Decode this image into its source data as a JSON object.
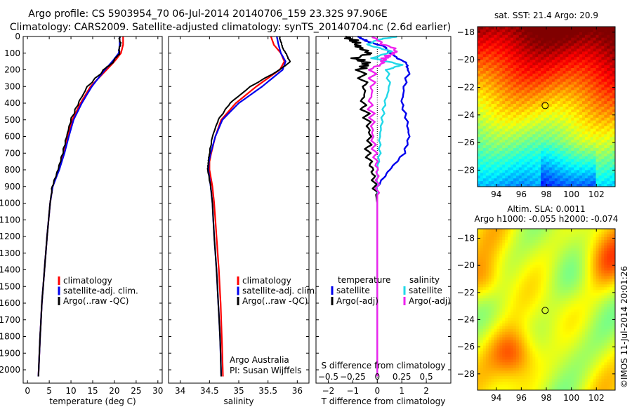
{
  "header": {
    "title_line1": "Argo profile: CS 5903954_70 06-Jul-2014 20140706_159 23.32S 97.906E",
    "title_line2": "Climatology: CARS2009. Satellite-adjusted climatology: synTS_20140704.nc (2.6d earlier)"
  },
  "colors": {
    "climatology": "#ff0000",
    "satellite": "#0000ee",
    "argo": "#000000",
    "salinity_satellite": "#22d8e8",
    "salinity_argo": "#ee22ee"
  },
  "chart_data": [
    {
      "id": "temperature",
      "type": "line",
      "xlabel": "temperature (deg C)",
      "ylabel": "",
      "xlim": [
        -1,
        31
      ],
      "ylim": [
        2080,
        0
      ],
      "xticks": [
        0,
        5,
        10,
        15,
        20,
        25,
        30
      ],
      "yticks": [
        0,
        100,
        200,
        300,
        400,
        500,
        600,
        700,
        800,
        900,
        1000,
        1100,
        1200,
        1300,
        1400,
        1500,
        1600,
        1700,
        1800,
        1900,
        2000
      ],
      "legend": [
        {
          "label": "climatology",
          "series": "climatology"
        },
        {
          "label": "satellite-adj. clim.",
          "series": "satellite"
        },
        {
          "label": "Argo(..raw -QC)",
          "series": "argo"
        }
      ],
      "series": [
        {
          "name": "climatology",
          "depth": [
            0,
            50,
            100,
            150,
            200,
            300,
            400,
            500,
            600,
            700,
            800,
            900,
            1000,
            1200,
            1400,
            1600,
            1800,
            2040
          ],
          "values": [
            22.0,
            22.0,
            21.5,
            20.0,
            18.2,
            14.5,
            12.2,
            10.3,
            9.2,
            8.3,
            7.2,
            5.8,
            5.2,
            4.5,
            3.9,
            3.3,
            2.9,
            2.5
          ]
        },
        {
          "name": "satellite",
          "depth": [
            0,
            50,
            100,
            150,
            200,
            300,
            400,
            500,
            600,
            700,
            800,
            900,
            1000,
            1200,
            1400,
            1600,
            1800,
            2040
          ],
          "values": [
            21.2,
            21.2,
            21.0,
            19.5,
            17.8,
            14.8,
            12.5,
            10.6,
            9.5,
            8.5,
            7.3,
            5.8,
            5.2,
            4.5,
            3.9,
            3.3,
            2.9,
            2.5
          ]
        },
        {
          "name": "argo",
          "depth": [
            0,
            50,
            100,
            150,
            200,
            300,
            400,
            500,
            600,
            700,
            800,
            900,
            1000,
            1200,
            1400,
            1600,
            1800,
            2040
          ],
          "values": [
            21.3,
            21.3,
            21.1,
            19.8,
            17.6,
            13.8,
            11.7,
            10.0,
            9.0,
            8.1,
            7.0,
            5.7,
            5.2,
            4.5,
            3.9,
            3.3,
            2.9,
            2.5
          ]
        }
      ]
    },
    {
      "id": "salinity",
      "type": "line",
      "xlabel": "salinity",
      "ylabel": "",
      "xlim": [
        33.8,
        36.2
      ],
      "ylim": [
        2080,
        0
      ],
      "xticks": [
        34,
        34.5,
        35,
        35.5,
        36
      ],
      "yticks": [
        0,
        100,
        200,
        300,
        400,
        500,
        600,
        700,
        800,
        900,
        1000,
        1100,
        1200,
        1300,
        1400,
        1500,
        1600,
        1700,
        1800,
        1900,
        2000
      ],
      "legend": [
        {
          "label": "climatology",
          "series": "climatology"
        },
        {
          "label": "satellite-adj. clim.",
          "series": "satellite"
        },
        {
          "label": "Argo(..raw -QC)",
          "series": "argo"
        }
      ],
      "annotations": [
        "Argo Australia",
        "PI: Susan Wijffels"
      ],
      "series": [
        {
          "name": "climatology",
          "depth": [
            0,
            50,
            100,
            150,
            200,
            300,
            400,
            500,
            600,
            700,
            750,
            800,
            900,
            1000,
            1200,
            1400,
            1600,
            1800,
            2040
          ],
          "values": [
            35.55,
            35.6,
            35.72,
            35.78,
            35.7,
            35.3,
            34.95,
            34.7,
            34.6,
            34.53,
            34.5,
            34.5,
            34.55,
            34.58,
            34.62,
            34.66,
            34.69,
            34.71,
            34.73
          ]
        },
        {
          "name": "satellite",
          "depth": [
            0,
            50,
            100,
            150,
            200,
            300,
            400,
            500,
            600,
            700,
            750,
            800,
            900,
            1000,
            1200,
            1400,
            1600,
            1800,
            2040
          ],
          "values": [
            35.65,
            35.68,
            35.72,
            35.8,
            35.75,
            35.4,
            35.0,
            34.72,
            34.6,
            34.52,
            34.49,
            34.48,
            34.52,
            34.55,
            34.58,
            34.62,
            34.65,
            34.68,
            34.7
          ]
        },
        {
          "name": "argo",
          "depth": [
            0,
            50,
            100,
            150,
            200,
            300,
            400,
            500,
            600,
            700,
            750,
            800,
            900,
            1000,
            1200,
            1400,
            1600,
            1800,
            2040
          ],
          "values": [
            35.7,
            35.73,
            35.8,
            35.88,
            35.7,
            35.2,
            34.85,
            34.65,
            34.55,
            34.5,
            34.48,
            34.47,
            34.52,
            34.55,
            34.58,
            34.62,
            34.65,
            34.68,
            34.7
          ]
        }
      ]
    },
    {
      "id": "difference",
      "type": "line",
      "xlabel": "T difference from climatology",
      "top_axis_label": "S difference from climatology",
      "xlim": [
        -2.5,
        3
      ],
      "ylim": [
        2080,
        0
      ],
      "xticks": [
        -2,
        -1,
        0,
        1,
        2
      ],
      "xticklabels": [
        "−2",
        "−1",
        "0",
        "1",
        "2"
      ],
      "top_ticks": [
        -0.5,
        -0.25,
        0,
        0.25,
        0.5
      ],
      "top_ticklabels": [
        "−0.5",
        "−0.25",
        "0",
        "0.25",
        "0.5"
      ],
      "top_scale": 4,
      "yticks": [
        0,
        100,
        200,
        300,
        400,
        500,
        600,
        700,
        800,
        900,
        1000,
        1100,
        1200,
        1300,
        1400,
        1500,
        1600,
        1700,
        1800,
        1900,
        2000
      ],
      "legend_left_title": "temperature",
      "legend_right_title": "salinity",
      "legend": [
        {
          "label": "satellite",
          "series": "satellite",
          "group": "temperature"
        },
        {
          "label": "Argo(-adj)",
          "series": "argo",
          "group": "temperature"
        },
        {
          "label": "satellite",
          "series": "salinity_satellite",
          "group": "salinity"
        },
        {
          "label": "Argo(-adj)",
          "series": "salinity_argo",
          "group": "salinity"
        }
      ],
      "series": [
        {
          "name": "temperature satellite",
          "color_key": "satellite",
          "depth": [
            0,
            30,
            60,
            100,
            150,
            200,
            300,
            400,
            500,
            600,
            700,
            800,
            900,
            1000,
            1200,
            1500,
            2040
          ],
          "values": [
            -0.8,
            -0.4,
            0.3,
            0.5,
            1.1,
            1.3,
            1.1,
            1.0,
            1.2,
            1.3,
            1.1,
            0.5,
            0.0,
            0.0,
            0.0,
            0.0,
            0.0
          ]
        },
        {
          "name": "temperature Argo",
          "color_key": "argo",
          "depth": [
            0,
            30,
            60,
            100,
            130,
            160,
            200,
            300,
            400,
            500,
            600,
            700,
            800,
            900,
            1000,
            1200,
            1500,
            2040
          ],
          "values": [
            -1.3,
            -0.9,
            -0.8,
            -0.3,
            -0.9,
            -0.4,
            -0.7,
            -0.5,
            -0.6,
            -0.4,
            -0.3,
            -0.4,
            -0.2,
            -0.1,
            0.0,
            0.0,
            0.0,
            0.0
          ]
        },
        {
          "name": "salinity satellite",
          "color_key": "salinity_satellite",
          "depth": [
            0,
            20,
            50,
            90,
            130,
            170,
            200,
            300,
            400,
            500,
            600,
            700,
            800,
            900,
            1000,
            1200,
            1500,
            2040
          ],
          "values": [
            0.8,
            0.0,
            -0.4,
            0.6,
            -0.2,
            1.0,
            0.4,
            0.5,
            0.3,
            0.2,
            0.1,
            0.1,
            0.0,
            0.0,
            0.0,
            0.0,
            0.0,
            0.0
          ]
        },
        {
          "name": "salinity Argo",
          "color_key": "salinity_argo",
          "depth": [
            0,
            40,
            90,
            120,
            150,
            200,
            300,
            400,
            500,
            600,
            700,
            800,
            900,
            1000,
            1200,
            1500,
            2040
          ],
          "values": [
            -0.2,
            0.2,
            0.8,
            0.4,
            0.2,
            -0.2,
            -0.2,
            -0.3,
            -0.2,
            -0.2,
            -0.1,
            0.0,
            0.0,
            0.0,
            0.0,
            0.0,
            0.0
          ]
        }
      ]
    },
    {
      "id": "sst_map",
      "type": "heatmap",
      "title": "sat. SST: 21.4  Argo: 20.9",
      "xlim": [
        92.5,
        103.5
      ],
      "ylim": [
        -29.2,
        -17.6
      ],
      "xticks": [
        94,
        96,
        98,
        100,
        102
      ],
      "yticks": [
        -18,
        -20,
        -22,
        -24,
        -26,
        -28
      ],
      "yticklabels": [
        "−18",
        "−20",
        "−22",
        "−24",
        "−26",
        "−28"
      ],
      "marker": {
        "lon": 97.906,
        "lat": -23.32
      }
    },
    {
      "id": "sla_map",
      "type": "heatmap",
      "title_line1": "Altim. SLA: 0.0011",
      "title_line2": "Argo h1000: -0.055  h2000: -0.074",
      "xlim": [
        92.5,
        103.5
      ],
      "ylim": [
        -29.2,
        -17.3
      ],
      "xticks": [
        94,
        96,
        98,
        100,
        102
      ],
      "yticks": [
        -18,
        -20,
        -22,
        -24,
        -26,
        -28
      ],
      "yticklabels": [
        "−18",
        "−20",
        "−22",
        "−24",
        "−26",
        "−28"
      ],
      "marker": {
        "lon": 97.906,
        "lat": -23.32
      }
    }
  ],
  "footer": {
    "credit": "©IMOS 11-Jul-2014 20:01:26"
  }
}
